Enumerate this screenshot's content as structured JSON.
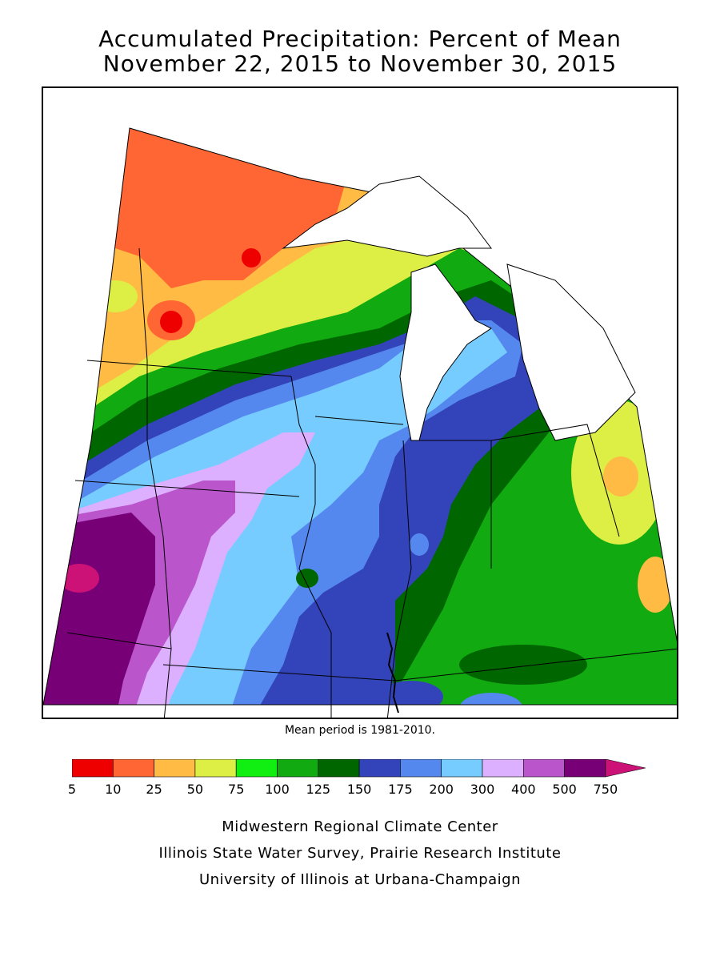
{
  "title": {
    "line1": "Accumulated Precipitation: Percent of Mean",
    "line2": "November 22, 2015 to November 30, 2015"
  },
  "mean_note": "Mean period is 1981-2010.",
  "legend": {
    "bins": [
      {
        "label": "5",
        "color": "#ee0000"
      },
      {
        "label": "10",
        "color": "#ff6633"
      },
      {
        "label": "25",
        "color": "#ffbb44"
      },
      {
        "label": "50",
        "color": "#ddee44"
      },
      {
        "label": "75",
        "color": "#11ee11"
      },
      {
        "label": "100",
        "color": "#11aa11"
      },
      {
        "label": "125",
        "color": "#006600"
      },
      {
        "label": "150",
        "color": "#3344bb"
      },
      {
        "label": "175",
        "color": "#5588ee"
      },
      {
        "label": "200",
        "color": "#77ccff"
      },
      {
        "label": "300",
        "color": "#ddb0ff"
      },
      {
        "label": "400",
        "color": "#bb55cc"
      },
      {
        "label": "500",
        "color": "#770077"
      },
      {
        "label": "750",
        "color": "#cc1177"
      }
    ]
  },
  "credits": {
    "line1": "Midwestern Regional Climate Center",
    "line2": "Illinois State Water Survey, Prairie Research Institute",
    "line3": "University of Illinois at Urbana-Champaign"
  }
}
